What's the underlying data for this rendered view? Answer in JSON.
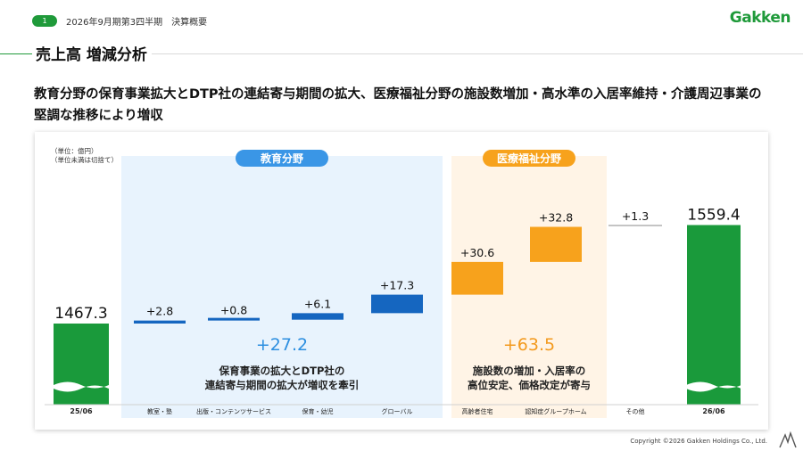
{
  "header": {
    "page_number": "1",
    "caption": "2026年9月期第3四半期　決算概要",
    "logo": "Gakken",
    "title": "売上高 増減分析"
  },
  "headline": "教育分野の保育事業拡大とDTP社の連結寄与期間の拡大、医療福祉分野の施設数増加・高水準の入居率維持・介護周辺事業の堅調な推移により増収",
  "unit_note": [
    "（単位：億円）",
    "（単位未満は切捨て）"
  ],
  "footer": "Copyright ©2026 Gakken Holdings Co., Ltd.",
  "colors": {
    "green": "#1a9a3b",
    "blue": "#1566c0",
    "orange": "#f7a21c",
    "blue_bg": "#e8f3fd",
    "orange_bg": "#fff4e6",
    "blue_text": "#2d8fe0",
    "orange_text": "#f39a1e"
  },
  "chart_data": {
    "type": "bar",
    "subtype": "waterfall",
    "unit": "億円",
    "start": {
      "label": "25/06",
      "value": 1467.3,
      "value_label": "1467.3"
    },
    "end": {
      "label": "26/06",
      "value": 1559.4,
      "value_label": "1559.4"
    },
    "steps": [
      {
        "category": "教室・塾",
        "delta": 2.8,
        "label": "+2.8",
        "group": "education"
      },
      {
        "category": "出版・コンテンツサービス",
        "delta": 0.8,
        "label": "+0.8",
        "group": "education"
      },
      {
        "category": "保育・幼児",
        "delta": 6.1,
        "label": "+6.1",
        "group": "education"
      },
      {
        "category": "グローバル",
        "delta": 17.3,
        "label": "+17.3",
        "group": "education"
      },
      {
        "category": "高齢者住宅",
        "delta": 30.6,
        "label": "+30.6",
        "group": "medical"
      },
      {
        "category": "認知症グループホーム",
        "delta": 32.8,
        "label": "+32.8",
        "group": "medical"
      },
      {
        "category": "その他",
        "delta": 1.3,
        "label": "+1.3",
        "group": "other"
      }
    ],
    "groups": [
      {
        "id": "education",
        "name": "教育分野",
        "total_label": "+27.2",
        "note": [
          "保育事業の拡大とDTP社の",
          "連結寄与期間の拡大が増収を牽引"
        ]
      },
      {
        "id": "medical",
        "name": "医療福祉分野",
        "total_label": "+63.5",
        "note": [
          "施設数の増加・入居率の",
          "高位安定、価格改定が寄与"
        ]
      }
    ],
    "axis_break": true
  }
}
